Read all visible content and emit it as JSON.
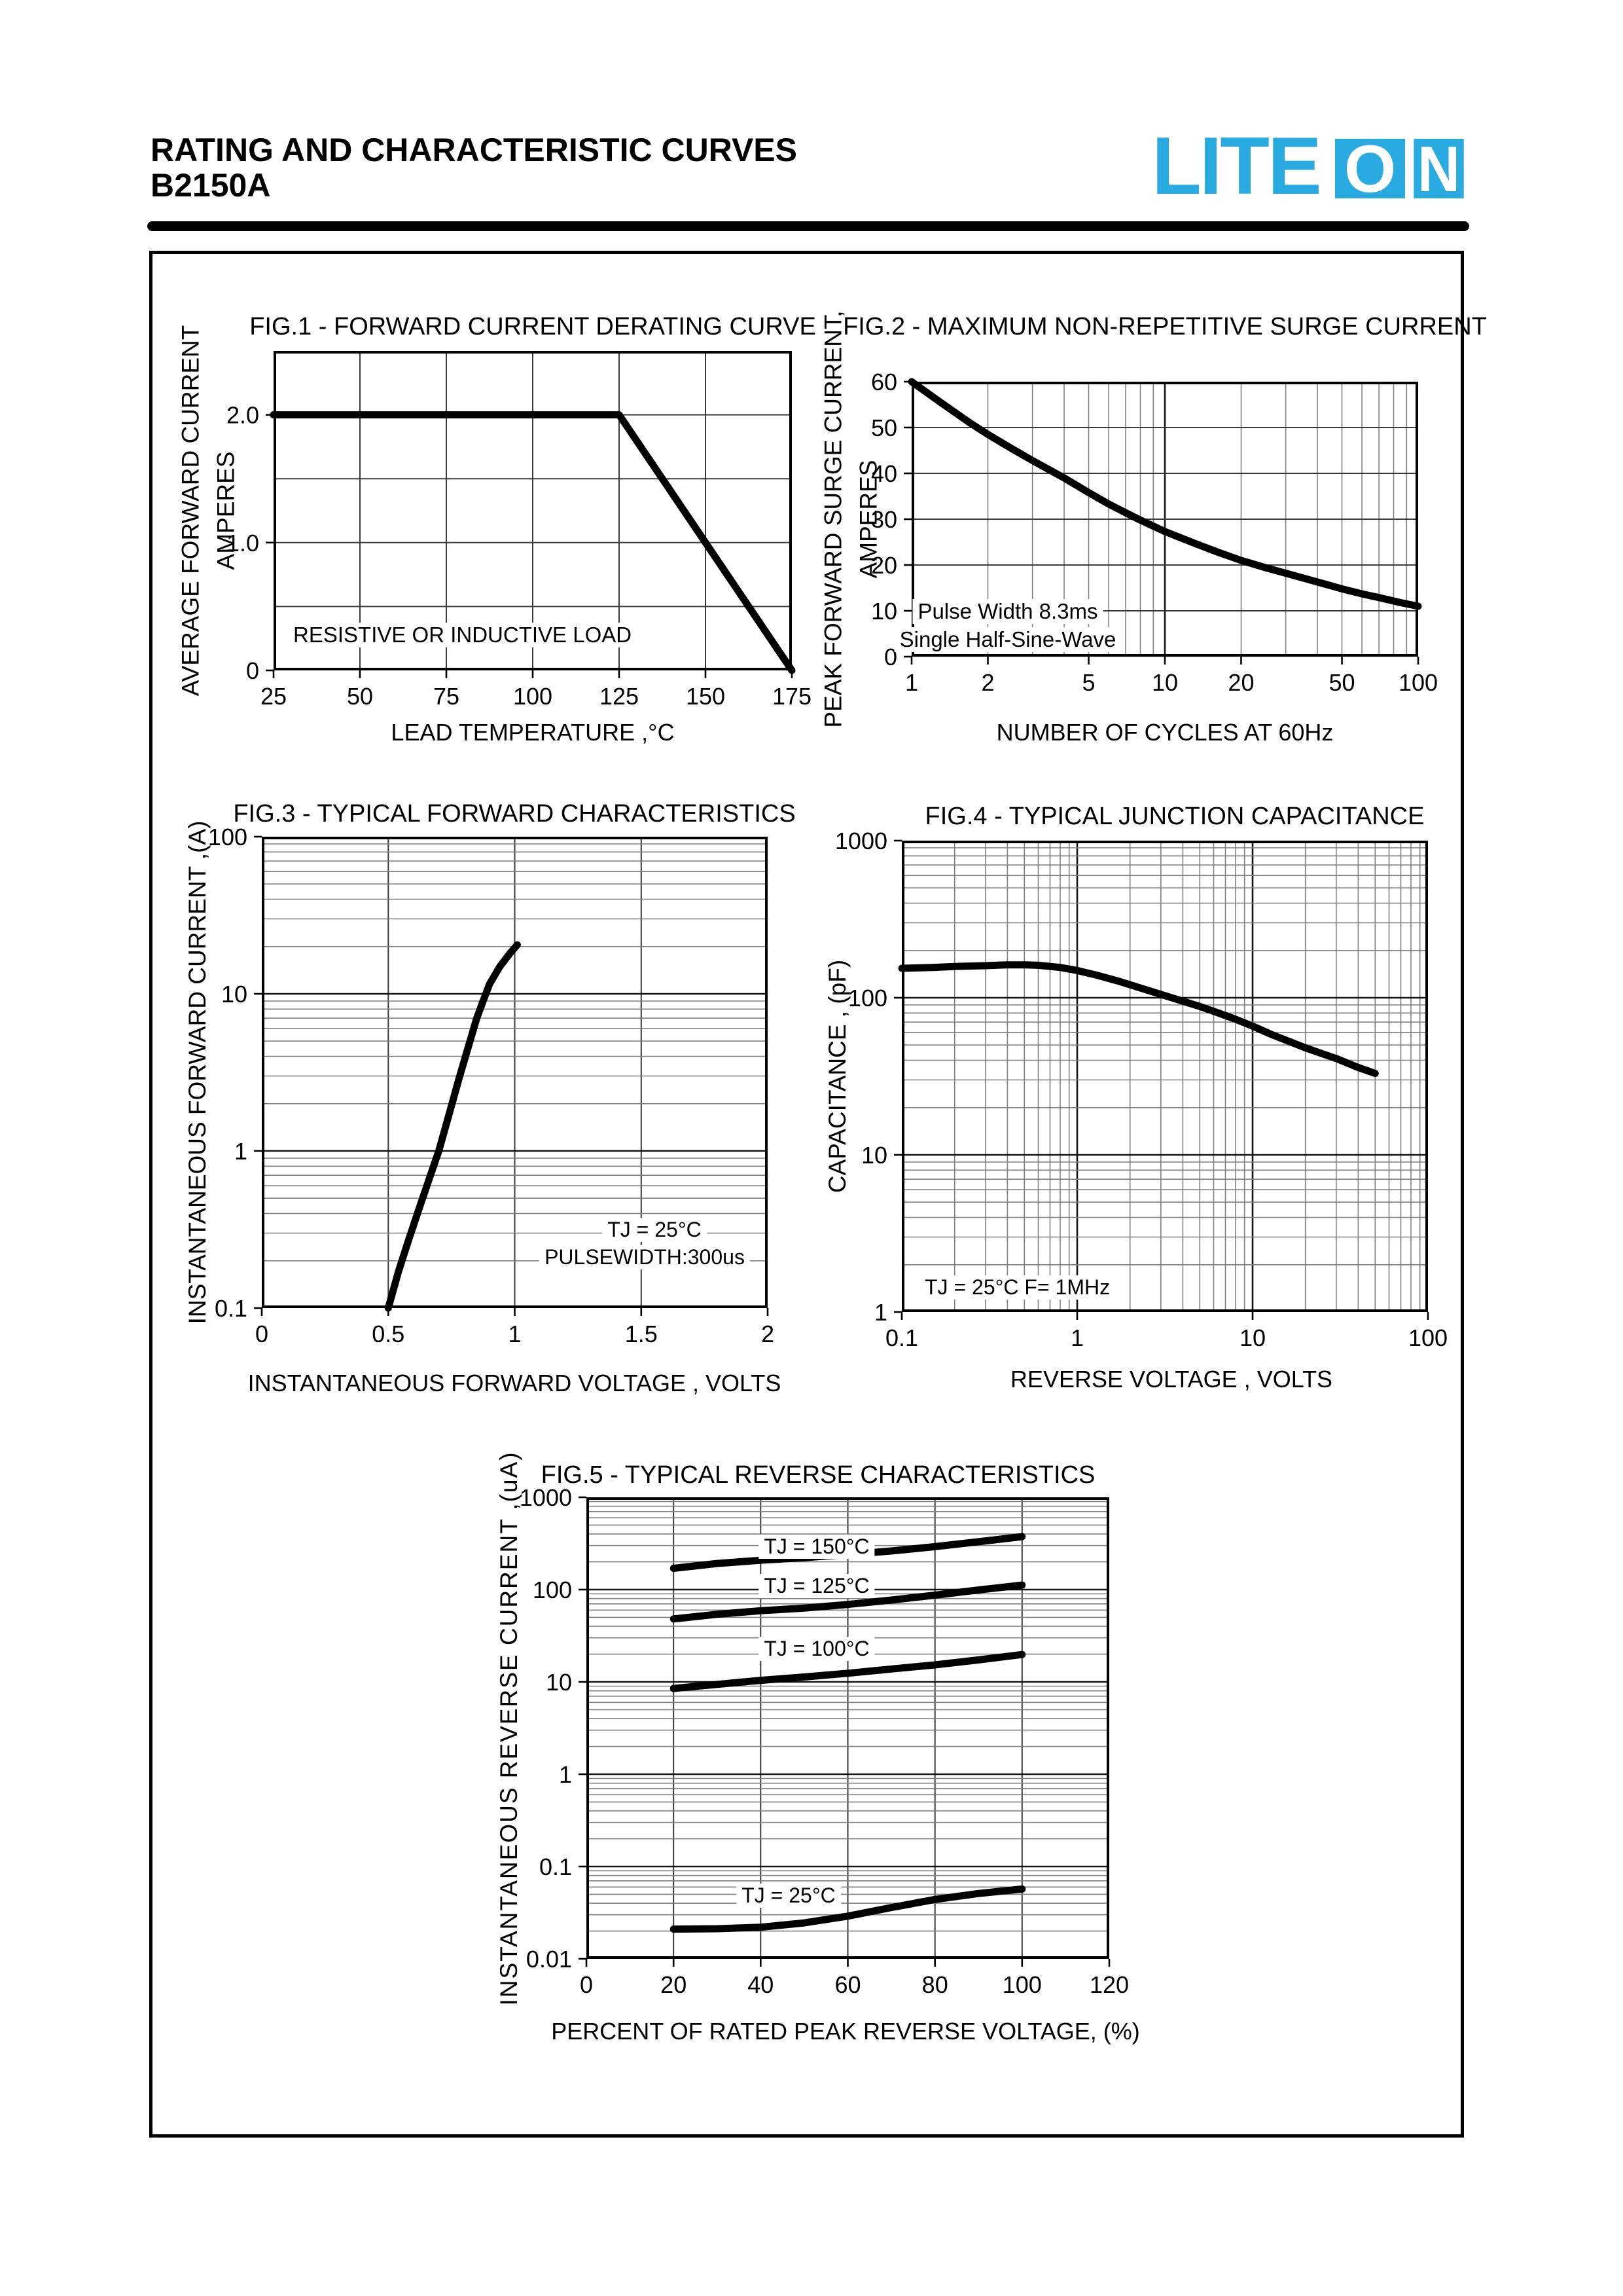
{
  "header": {
    "title_line1": "RATING AND CHARACTERISTIC CURVES",
    "title_line2": "B2150A"
  },
  "logo": {
    "lite": "LITE",
    "o": "O",
    "n": "N",
    "brand_color": "#29ABE2"
  },
  "chart_data": [
    {
      "id": "fig1",
      "type": "line",
      "title": "FIG.1 - FORWARD CURRENT DERATING CURVE",
      "xlabel": "LEAD TEMPERATURE ,°C",
      "ylabel": "AVERAGE FORWARD CURRENT\nAMPERES",
      "x_axis": {
        "scale": "linear",
        "min": 25,
        "max": 175,
        "grid_step": 25,
        "tick_values": [
          25,
          50,
          75,
          100,
          125,
          150,
          175
        ],
        "tick_labels": [
          "25",
          "50",
          "75",
          "100",
          "125",
          "150",
          "175"
        ]
      },
      "y_axis": {
        "scale": "linear",
        "min": 0,
        "max": 2.5,
        "grid_step": 0.5,
        "tick_values": [
          0,
          1,
          2
        ],
        "tick_labels": [
          "0",
          "1.0",
          "2.0"
        ]
      },
      "annotations": [
        "RESISTIVE OR INDUCTIVE LOAD"
      ],
      "series": [
        {
          "name": "",
          "points": [
            [
              25,
              2
            ],
            [
              125,
              2
            ],
            [
              175,
              0
            ]
          ]
        }
      ]
    },
    {
      "id": "fig2",
      "type": "line",
      "title": "FIG.2 - MAXIMUM NON-REPETITIVE SURGE CURRENT",
      "xlabel": "NUMBER OF CYCLES AT 60Hz",
      "ylabel": "PEAK FORWARD SURGE CURRENT,\nAMPERES",
      "x_axis": {
        "scale": "log",
        "min": 1,
        "max": 100,
        "tick_values": [
          1,
          2,
          5,
          10,
          20,
          50,
          100
        ],
        "tick_labels": [
          "1",
          "2",
          "5",
          "10",
          "20",
          "50",
          "100"
        ]
      },
      "y_axis": {
        "scale": "linear",
        "min": 0,
        "max": 60,
        "grid_step": 10,
        "tick_values": [
          0,
          10,
          20,
          30,
          40,
          50,
          60
        ],
        "tick_labels": [
          "0",
          "10",
          "20",
          "30",
          "40",
          "50",
          "60"
        ]
      },
      "annotations": [
        "Pulse Width 8.3ms",
        "Single Half-Sine-Wave"
      ],
      "series": [
        {
          "name": "",
          "points": [
            [
              1,
              60
            ],
            [
              1.3,
              55.5
            ],
            [
              1.7,
              51
            ],
            [
              2,
              48.5
            ],
            [
              2.5,
              45.3
            ],
            [
              3,
              42.8
            ],
            [
              4,
              39
            ],
            [
              5,
              35.8
            ],
            [
              6,
              33.3
            ],
            [
              7,
              31.4
            ],
            [
              8,
              29.8
            ],
            [
              10,
              27.3
            ],
            [
              13,
              24.8
            ],
            [
              16,
              22.9
            ],
            [
              20,
              21
            ],
            [
              25,
              19.4
            ],
            [
              30,
              18.2
            ],
            [
              40,
              16.3
            ],
            [
              50,
              14.8
            ],
            [
              60,
              13.7
            ],
            [
              70,
              12.9
            ],
            [
              85,
              11.8
            ],
            [
              100,
              11
            ]
          ]
        }
      ]
    },
    {
      "id": "fig3",
      "type": "line",
      "title": "FIG.3 - TYPICAL FORWARD CHARACTERISTICS",
      "xlabel": "INSTANTANEOUS FORWARD VOLTAGE , VOLTS",
      "ylabel": "INSTANTANEOUS  FORWARD CURRENT ,(A)",
      "x_axis": {
        "scale": "linear",
        "min": 0,
        "max": 2,
        "grid_step": 0.5,
        "tick_values": [
          0,
          0.5,
          1,
          1.5,
          2
        ],
        "tick_labels": [
          "0",
          "0.5",
          "1",
          "1.5",
          "2"
        ]
      },
      "y_axis": {
        "scale": "log",
        "min": 0.1,
        "max": 100,
        "tick_values": [
          0.1,
          1,
          10,
          100
        ],
        "tick_labels": [
          "0.1",
          "1",
          "10",
          "100"
        ]
      },
      "annotations": [
        "TJ = 25°C",
        "PULSEWIDTH:300us"
      ],
      "series": [
        {
          "name": "",
          "points": [
            [
              0.5,
              0.1
            ],
            [
              0.54,
              0.17
            ],
            [
              0.58,
              0.27
            ],
            [
              0.62,
              0.42
            ],
            [
              0.66,
              0.65
            ],
            [
              0.7,
              1.0
            ],
            [
              0.74,
              1.7
            ],
            [
              0.78,
              2.9
            ],
            [
              0.82,
              4.8
            ],
            [
              0.85,
              7.0
            ],
            [
              0.875,
              9.0
            ],
            [
              0.9,
              11.5
            ],
            [
              0.94,
              14.8
            ],
            [
              0.98,
              18
            ],
            [
              1.01,
              20.5
            ]
          ]
        }
      ]
    },
    {
      "id": "fig4",
      "type": "line",
      "title": "FIG.4 - TYPICAL JUNCTION CAPACITANCE",
      "xlabel": "REVERSE VOLTAGE , VOLTS",
      "ylabel": "CAPACITANCE , (pF)",
      "x_axis": {
        "scale": "log",
        "min": 0.1,
        "max": 100,
        "tick_values": [
          0.1,
          1,
          10,
          100
        ],
        "tick_labels": [
          "0.1",
          "1",
          "10",
          "100"
        ]
      },
      "y_axis": {
        "scale": "log",
        "min": 1,
        "max": 1000,
        "tick_values": [
          1,
          10,
          100,
          1000
        ],
        "tick_labels": [
          "1",
          "10",
          "100",
          "1000"
        ]
      },
      "annotations": [
        "TJ = 25°C F= 1MHz"
      ],
      "series": [
        {
          "name": "",
          "points": [
            [
              0.1,
              154
            ],
            [
              0.15,
              156
            ],
            [
              0.2,
              158
            ],
            [
              0.3,
              160
            ],
            [
              0.4,
              162
            ],
            [
              0.5,
              162
            ],
            [
              0.6,
              161
            ],
            [
              0.8,
              156
            ],
            [
              1,
              149
            ],
            [
              1.3,
              139
            ],
            [
              1.7,
              128
            ],
            [
              2,
              121
            ],
            [
              2.5,
              112
            ],
            [
              3,
              105
            ],
            [
              4,
              95
            ],
            [
              5,
              88
            ],
            [
              6,
              82
            ],
            [
              8,
              73
            ],
            [
              10,
              66
            ],
            [
              13,
              58
            ],
            [
              16,
              53
            ],
            [
              20,
              48
            ],
            [
              25,
              44
            ],
            [
              30,
              41
            ],
            [
              40,
              36
            ],
            [
              50,
              33
            ]
          ]
        }
      ]
    },
    {
      "id": "fig5",
      "type": "line",
      "title": "FIG.5 - TYPICAL REVERSE CHARACTERISTICS",
      "xlabel": "PERCENT OF RATED PEAK REVERSE VOLTAGE, (%)",
      "ylabel": "INSTANTANEOUS REVERSE CURRENT ,(uA)",
      "x_axis": {
        "scale": "linear",
        "min": 0,
        "max": 120,
        "grid_step": 20,
        "tick_values": [
          0,
          20,
          40,
          60,
          80,
          100,
          120
        ],
        "tick_labels": [
          "0",
          "20",
          "40",
          "60",
          "80",
          "100",
          "120"
        ]
      },
      "y_axis": {
        "scale": "log",
        "min": 0.01,
        "max": 1000,
        "tick_values": [
          0.01,
          0.1,
          1,
          10,
          100,
          1000
        ],
        "tick_labels": [
          "0.01",
          "0.1",
          "1",
          "10",
          "100",
          "1000"
        ]
      },
      "annotations": [],
      "series": [
        {
          "name": "TJ = 150°C",
          "points": [
            [
              20,
              170
            ],
            [
              30,
              192
            ],
            [
              40,
              208
            ],
            [
              50,
              222
            ],
            [
              60,
              240
            ],
            [
              70,
              262
            ],
            [
              80,
              292
            ],
            [
              90,
              330
            ],
            [
              100,
              375
            ]
          ]
        },
        {
          "name": "TJ = 125°C",
          "points": [
            [
              20,
              48
            ],
            [
              30,
              54
            ],
            [
              40,
              59
            ],
            [
              50,
              63
            ],
            [
              60,
              69
            ],
            [
              70,
              77
            ],
            [
              80,
              87
            ],
            [
              90,
              99
            ],
            [
              100,
              112
            ]
          ]
        },
        {
          "name": "TJ = 100°C",
          "points": [
            [
              20,
              8.5
            ],
            [
              30,
              9.4
            ],
            [
              40,
              10.4
            ],
            [
              50,
              11.3
            ],
            [
              60,
              12.4
            ],
            [
              70,
              13.8
            ],
            [
              80,
              15.3
            ],
            [
              90,
              17.3
            ],
            [
              100,
              19.8
            ]
          ]
        },
        {
          "name": "TJ = 25°C",
          "points": [
            [
              20,
              0.021
            ],
            [
              30,
              0.0212
            ],
            [
              40,
              0.022
            ],
            [
              50,
              0.0245
            ],
            [
              60,
              0.029
            ],
            [
              70,
              0.036
            ],
            [
              80,
              0.044
            ],
            [
              90,
              0.051
            ],
            [
              100,
              0.057
            ]
          ]
        }
      ]
    }
  ]
}
